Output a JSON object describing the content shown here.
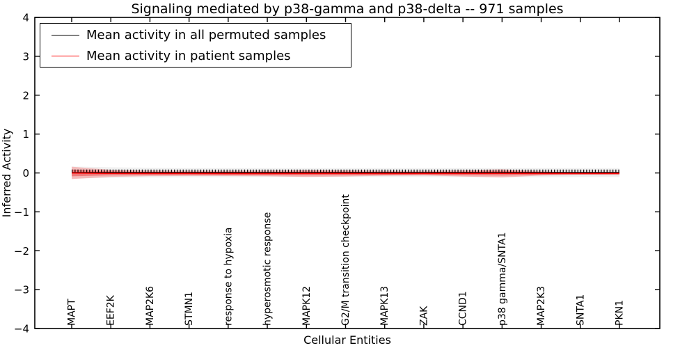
{
  "title": "Signaling mediated by p38-gamma and p38-delta -- 971 samples",
  "axes": {
    "xlabel": "Cellular Entities",
    "ylabel": "Inferred Activity"
  },
  "legend": {
    "entries": [
      {
        "label": "Mean activity in all permuted samples",
        "color": "#000000"
      },
      {
        "label": "Mean activity in patient samples",
        "color": "#ff0000"
      }
    ]
  },
  "chart_data": {
    "type": "line",
    "title": "Signaling mediated by p38-gamma and p38-delta -- 971 samples",
    "xlabel": "Cellular Entities",
    "ylabel": "Inferred Activity",
    "ylim": [
      -4,
      4
    ],
    "yticks": [
      -4,
      -3,
      -2,
      -1,
      0,
      1,
      2,
      3,
      4
    ],
    "grid": false,
    "tick_direction": "in",
    "legend_position": "upper left",
    "categories": [
      "MAPT",
      "EEF2K",
      "MAP2K6",
      "STMN1",
      "response to hypoxia",
      "hyperosmotic response",
      "MAPK12",
      "G2/M transition checkpoint",
      "MAPK13",
      "ZAK",
      "CCND1",
      "p38 gamma/SNTA1",
      "MAP2K3",
      "SNTA1",
      "PKN1"
    ],
    "series": [
      {
        "name": "Mean activity in all permuted samples",
        "color": "#000000",
        "marker": "|",
        "values": [
          0.01,
          0.01,
          0.01,
          0.01,
          0.01,
          0.01,
          0.01,
          0.01,
          0.01,
          0.01,
          0.01,
          0.01,
          0.01,
          0.01,
          0.01
        ],
        "band_halfwidth": [
          0.155,
          0.135,
          0.125,
          0.12,
          0.12,
          0.115,
          0.115,
          0.115,
          0.115,
          0.115,
          0.12,
          0.12,
          0.12,
          0.115,
          0.115
        ],
        "band_color": "#888888"
      },
      {
        "name": "Mean activity in patient samples",
        "color": "#ff0000",
        "marker": "none",
        "values": [
          0.0,
          -0.01,
          -0.013,
          -0.013,
          -0.015,
          -0.015,
          -0.013,
          -0.012,
          -0.014,
          -0.013,
          -0.012,
          -0.01,
          -0.013,
          -0.014,
          -0.013
        ],
        "band_halfwidth": [
          0.16,
          0.09,
          0.07,
          0.065,
          0.065,
          0.07,
          0.09,
          0.08,
          0.06,
          0.055,
          0.08,
          0.105,
          0.055,
          0.03,
          0.035
        ],
        "band_color": "#ff0000"
      }
    ]
  }
}
